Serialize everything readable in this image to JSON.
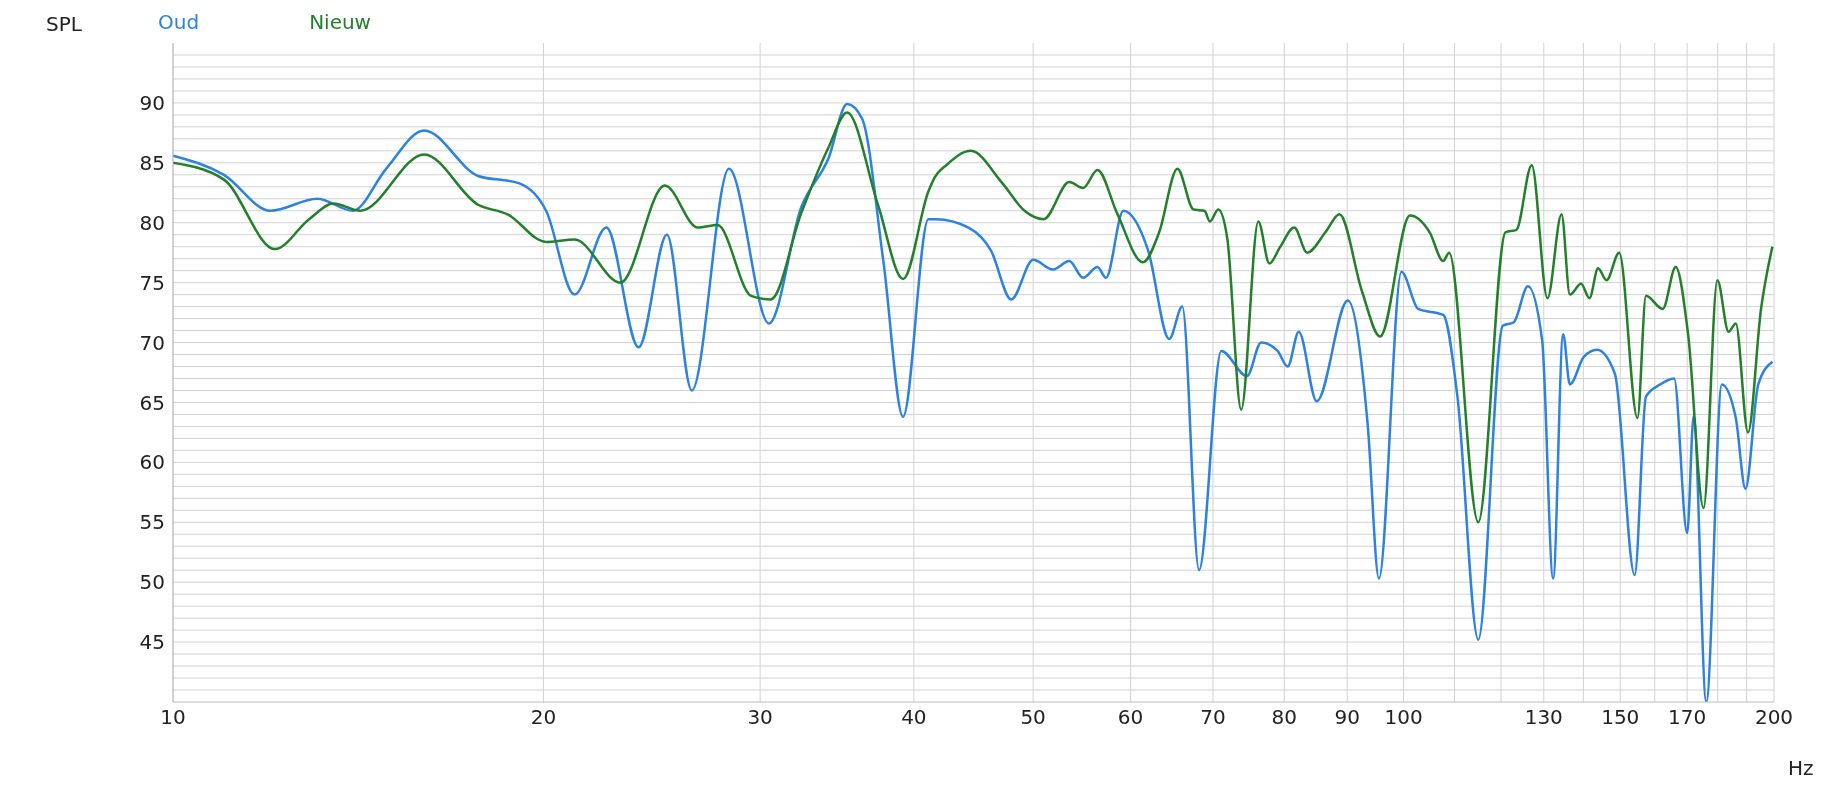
{
  "chart_data": {
    "type": "line",
    "xlabel": "Hz",
    "ylabel": "SPL",
    "log": "x",
    "grid": true,
    "legend": "top left",
    "line_style": "solid",
    "xlim": [
      10,
      200
    ],
    "ylim": [
      40,
      95
    ],
    "xticks": [
      10,
      20,
      30,
      40,
      50,
      60,
      70,
      80,
      90,
      100,
      {
        "value": 110,
        "label": null
      },
      {
        "value": 120,
        "label": null
      },
      130,
      {
        "value": 140,
        "label": null
      },
      150,
      {
        "value": 160,
        "label": null
      },
      170,
      {
        "value": 180,
        "label": null
      },
      {
        "value": 190,
        "label": null
      },
      200
    ],
    "yticks": [
      {
        "value": 41,
        "label": null
      },
      {
        "value": 42,
        "label": null
      },
      {
        "value": 43,
        "label": null
      },
      {
        "value": 44,
        "label": null
      },
      45,
      {
        "value": 46,
        "label": null
      },
      {
        "value": 47,
        "label": null
      },
      {
        "value": 48,
        "label": null
      },
      {
        "value": 49,
        "label": null
      },
      50,
      {
        "value": 51,
        "label": null
      },
      {
        "value": 52,
        "label": null
      },
      {
        "value": 53,
        "label": null
      },
      {
        "value": 54,
        "label": null
      },
      55,
      {
        "value": 56,
        "label": null
      },
      {
        "value": 57,
        "label": null
      },
      {
        "value": 58,
        "label": null
      },
      {
        "value": 59,
        "label": null
      },
      60,
      {
        "value": 61,
        "label": null
      },
      {
        "value": 62,
        "label": null
      },
      {
        "value": 63,
        "label": null
      },
      {
        "value": 64,
        "label": null
      },
      65,
      {
        "value": 66,
        "label": null
      },
      {
        "value": 67,
        "label": null
      },
      {
        "value": 68,
        "label": null
      },
      {
        "value": 69,
        "label": null
      },
      70,
      {
        "value": 71,
        "label": null
      },
      {
        "value": 72,
        "label": null
      },
      {
        "value": 73,
        "label": null
      },
      {
        "value": 74,
        "label": null
      },
      75,
      {
        "value": 76,
        "label": null
      },
      {
        "value": 77,
        "label": null
      },
      {
        "value": 78,
        "label": null
      },
      {
        "value": 79,
        "label": null
      },
      80,
      {
        "value": 81,
        "label": null
      },
      {
        "value": 82,
        "label": null
      },
      {
        "value": 83,
        "label": null
      },
      {
        "value": 84,
        "label": null
      },
      85,
      {
        "value": 86,
        "label": null
      },
      {
        "value": 87,
        "label": null
      },
      {
        "value": 88,
        "label": null
      },
      {
        "value": 89,
        "label": null
      },
      90,
      {
        "value": 91,
        "label": null
      },
      {
        "value": 92,
        "label": null
      },
      {
        "value": 93,
        "label": null
      },
      {
        "value": 94,
        "label": null
      }
    ],
    "series": [
      {
        "name": "Oud",
        "color": "#2b82e0",
        "x": [
          10,
          11,
          12,
          13.1,
          14,
          14.9,
          16,
          17.7,
          19.1,
          20.1,
          21.2,
          22.5,
          23.9,
          25.2,
          26.4,
          28.3,
          30.5,
          32.4,
          34.1,
          35.3,
          36.3,
          37.8,
          39.2,
          41.1,
          41.7,
          44.3,
          46.2,
          48,
          50,
          51.9,
          53.5,
          54.9,
          56.4,
          57.3,
          59.2,
          62,
          64.5,
          66.1,
          68.2,
          71.1,
          74.6,
          76.6,
          79,
          80.5,
          82.2,
          85,
          90.1,
          93.5,
          95.5,
          99.6,
          102.8,
          107.7,
          110.6,
          115,
          120.4,
          122.9,
          126.2,
          129.6,
          132.3,
          134.8,
          136.5,
          140.1,
          143.6,
          148.5,
          154.1,
          157.4,
          161.6,
          165.9,
          170,
          172.1,
          176.2,
          181.4,
          186.2,
          189.6,
          194.2,
          199.4
        ],
        "values": [
          85.6,
          84,
          81,
          82,
          81,
          84.5,
          87.7,
          83.9,
          83.3,
          81,
          74,
          79.6,
          69.6,
          79,
          66,
          84.5,
          71.6,
          81.3,
          85.4,
          89.9,
          88.7,
          76.6,
          63.8,
          80.3,
          80.3,
          79.6,
          77.7,
          73.6,
          76.9,
          76.1,
          76.8,
          75.4,
          76.3,
          75.4,
          81,
          77.7,
          70.3,
          73,
          51,
          69.3,
          67.2,
          70,
          69.3,
          68,
          70.9,
          65.1,
          73.5,
          63.2,
          50.3,
          75.9,
          72.8,
          72.3,
          65.5,
          45.2,
          71.4,
          71.7,
          74.7,
          70.2,
          50.3,
          70.7,
          66.5,
          68.8,
          69.4,
          67.4,
          50.6,
          65.5,
          66.5,
          67,
          54.1,
          63.9,
          40,
          66.5,
          63.7,
          57.8,
          66.5,
          68.4
        ]
      },
      {
        "name": "Nieuw",
        "color": "#23802a",
        "x": [
          10,
          11,
          12.1,
          12.9,
          13.5,
          14.2,
          16,
          17.7,
          18.7,
          20.1,
          21.2,
          23.1,
          25.1,
          26.7,
          27.7,
          29.5,
          30.6,
          32.4,
          34.1,
          35.3,
          37.4,
          39.2,
          41.1,
          41.6,
          42.5,
          44.5,
          47.2,
          49.2,
          51,
          53.5,
          54.9,
          56.4,
          58.5,
          61.4,
          63.3,
          65.5,
          67.5,
          68.9,
          69.6,
          70.7,
          71.9,
          73.8,
          76.2,
          77.8,
          79.4,
          81.5,
          83.5,
          86.4,
          88.7,
          92.5,
          95.7,
          101.2,
          105,
          107.7,
          108.9,
          115,
          121,
          123.5,
          127.1,
          130.9,
          134.4,
          136.5,
          139.4,
          141.6,
          143.9,
          146.2,
          149.7,
          154.9,
          157.4,
          162.4,
          166.4,
          170.3,
          175.3,
          179.9,
          183.7,
          186.2,
          190.5,
          195.2,
          199.4
        ],
        "values": [
          85,
          83.6,
          77.8,
          80.3,
          81.6,
          81,
          85.7,
          81.5,
          80.7,
          78.4,
          78.6,
          75,
          83.1,
          79.6,
          79.8,
          73.9,
          73.6,
          80.8,
          86.3,
          89.2,
          81.5,
          75.3,
          82.6,
          83.8,
          84.8,
          86,
          83.3,
          81,
          80.3,
          83.4,
          82.9,
          84.4,
          80.8,
          76.7,
          79.2,
          84.5,
          81.1,
          81,
          80.1,
          81.1,
          78.7,
          64.4,
          80.1,
          76.6,
          78,
          79.6,
          77.5,
          79.2,
          80.7,
          74.3,
          70.5,
          80.6,
          79.2,
          76.8,
          77.5,
          55,
          79.2,
          79.4,
          84.8,
          73.7,
          80.7,
          74,
          74.9,
          73.7,
          76.2,
          75.2,
          77.5,
          63.7,
          73.9,
          72.8,
          76.3,
          70.7,
          56.2,
          75.2,
          70.9,
          71.6,
          62.5,
          72.8,
          78
        ]
      }
    ]
  }
}
